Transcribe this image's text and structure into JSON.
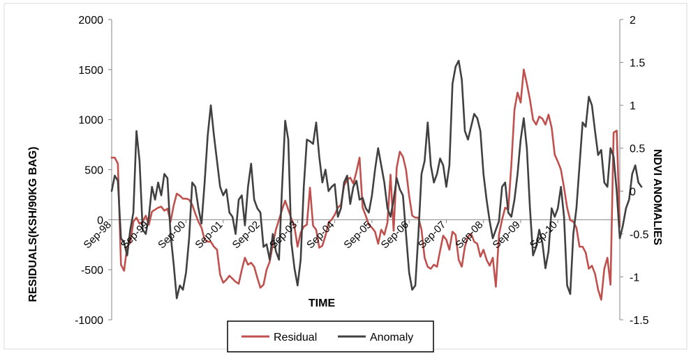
{
  "chart_data": {
    "type": "line",
    "xlabel": "TIME",
    "ylabel_left": "RESIDUALS(KSH/90KG BAG)",
    "ylabel_right": "NDVI ANOMALIES",
    "y_left_range": [
      -1000,
      2000
    ],
    "y_left_ticks": [
      "2000",
      "1500",
      "1000",
      "500",
      "0",
      "-500",
      "-1000"
    ],
    "y_right_range": [
      -1.5,
      2
    ],
    "y_right_ticks": [
      "2",
      "1.5",
      "1",
      "0.5",
      "0",
      "-0.5",
      "-1",
      "-1.5"
    ],
    "x_tick_labels": [
      "Sep-98",
      "Sep-99",
      "Sep-00",
      "Sep-01",
      "Sep-02",
      "Sep-03",
      "Sep-04",
      "Sep-05",
      "Sep-06",
      "Sep-07",
      "Sep-08",
      "Sep-09",
      "Sep-10"
    ],
    "grid": false,
    "legend_position": "bottom",
    "colors": {
      "residual": "#c0504d",
      "anomaly": "#404040"
    },
    "series": [
      {
        "name": "Residual",
        "axis": "left",
        "values": [
          620,
          620,
          560,
          -450,
          -510,
          -270,
          -230,
          -20,
          20,
          -40,
          -20,
          40,
          -50,
          80,
          100,
          120,
          130,
          90,
          110,
          -20,
          140,
          260,
          240,
          210,
          210,
          200,
          150,
          60,
          -20,
          -80,
          -200,
          -220,
          -220,
          -270,
          -300,
          -550,
          -630,
          -600,
          -560,
          -590,
          -620,
          -640,
          -500,
          -380,
          -450,
          -430,
          -470,
          -580,
          -680,
          -650,
          -500,
          -420,
          -250,
          -100,
          0,
          100,
          190,
          100,
          10,
          -70,
          -270,
          -130,
          -70,
          -50,
          320,
          -60,
          -100,
          -280,
          -260,
          -160,
          -30,
          0,
          50,
          120,
          150,
          340,
          400,
          420,
          360,
          480,
          620,
          120,
          40,
          -50,
          -80,
          -120,
          -240,
          -100,
          -150,
          -30,
          450,
          -110,
          520,
          680,
          630,
          500,
          240,
          40,
          20,
          20,
          -100,
          -380,
          -470,
          -490,
          -450,
          -470,
          -310,
          -160,
          -200,
          -300,
          -120,
          -150,
          -400,
          -470,
          -270,
          -170,
          -140,
          -220,
          -240,
          -370,
          -300,
          -400,
          -460,
          -380,
          -670,
          -150,
          0,
          120,
          100,
          550,
          1100,
          1270,
          1170,
          1500,
          1360,
          1200,
          1000,
          950,
          1030,
          1010,
          950,
          1050,
          920,
          650,
          580,
          500,
          320,
          120,
          -5,
          -20,
          -80,
          -270,
          -270,
          -330,
          -490,
          -460,
          -540,
          -700,
          -800,
          -490,
          -380,
          -650,
          870,
          890,
          -70
        ]
      },
      {
        "name": "Anomaly",
        "axis": "right",
        "values": [
          0,
          0.18,
          0.12,
          -0.55,
          -0.6,
          -0.75,
          -0.45,
          -0.25,
          0.7,
          0.35,
          -0.45,
          -0.5,
          -0.3,
          0.05,
          -0.1,
          0.1,
          -0.05,
          0.2,
          0.15,
          -0.5,
          -0.85,
          -1.25,
          -1.1,
          -1.15,
          -0.95,
          -0.55,
          0.1,
          0.05,
          -0.2,
          -0.38,
          0.1,
          0.65,
          1,
          0.65,
          0.35,
          0.05,
          -0.05,
          0.02,
          -0.25,
          -0.3,
          -0.5,
          -0.1,
          -0.05,
          -0.4,
          0.05,
          0.32,
          -0.1,
          -0.2,
          -0.25,
          -0.65,
          -0.62,
          -0.8,
          -0.5,
          -0.7,
          -0.8,
          0.05,
          0.82,
          0.6,
          -0.6,
          -0.9,
          -1.1,
          -0.8,
          0.05,
          0.6,
          0.58,
          0.55,
          0.8,
          0.4,
          0.1,
          0.25,
          0,
          0.05,
          0.08,
          -0.3,
          -0.2,
          0.1,
          0.18,
          -0.15,
          0.05,
          0.12,
          -0.1,
          -0.08,
          -0.2,
          -0.25,
          -0.05,
          0.25,
          0.5,
          0.3,
          0.1,
          -0.2,
          -0.3,
          -0.1,
          0.15,
          0.02,
          -0.05,
          -0.5,
          -0.95,
          -1.15,
          -1.1,
          -0.5,
          0.2,
          0.35,
          0.8,
          0.3,
          0.1,
          0.2,
          0.38,
          0.3,
          0.05,
          0.3,
          1.25,
          1.45,
          1.52,
          1.3,
          0.7,
          0.6,
          0.75,
          0.9,
          0.85,
          0.7,
          0.2,
          -0.1,
          -0.35,
          -0.55,
          -0.45,
          -0.35,
          0.05,
          0.1,
          -0.25,
          -0.3,
          -0.1,
          0.2,
          0.6,
          0.85,
          0.5,
          -0.2,
          -0.75,
          -0.65,
          -0.45,
          -0.6,
          -0.9,
          -0.7,
          -0.2,
          -0.3,
          -0.2,
          0.05,
          -0.3,
          -1.1,
          -1.2,
          -0.5,
          -0.2,
          0.3,
          0.8,
          0.75,
          1.1,
          1,
          0.7,
          0.42,
          0.48,
          0.1,
          0.05,
          0.5,
          0.4,
          0,
          -0.55,
          -0.4,
          -0.2,
          -0.1,
          0.2,
          0.3,
          0.1,
          0.05
        ]
      }
    ]
  }
}
